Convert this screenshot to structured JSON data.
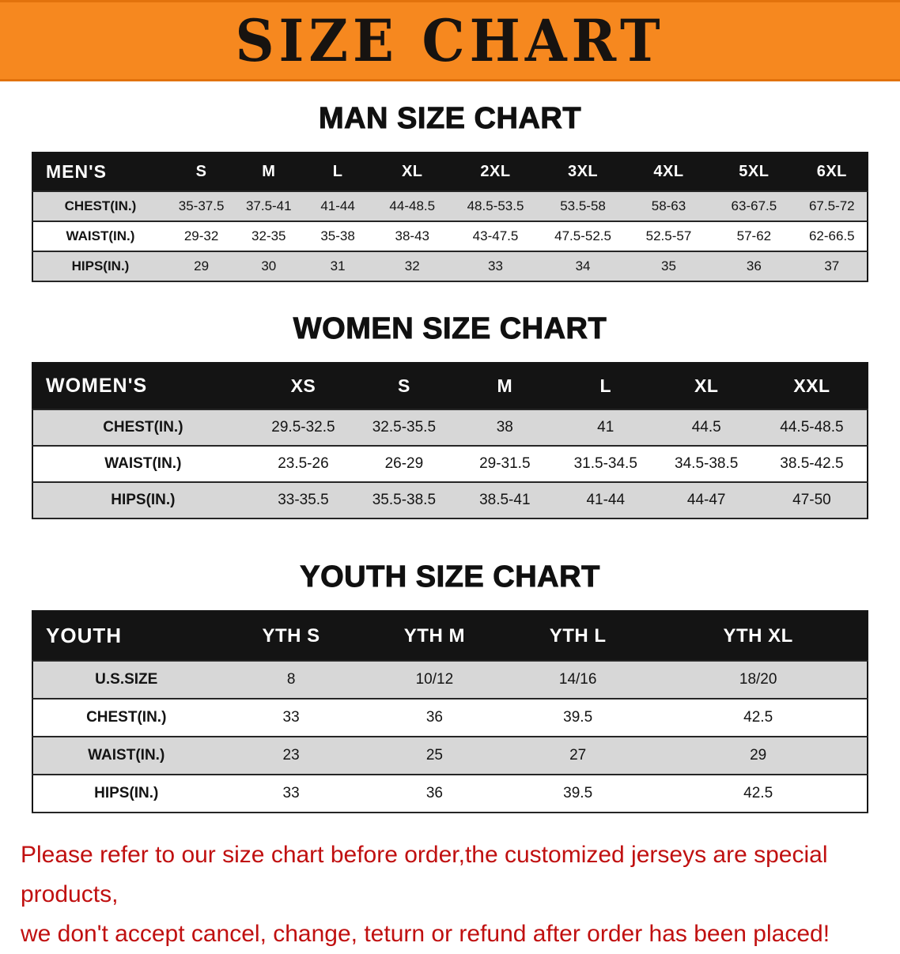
{
  "banner": {
    "title": "SIZE CHART",
    "bg_color": "#f6881f",
    "text_color": "#171310"
  },
  "men": {
    "heading": "MAN SIZE CHART",
    "table": {
      "header": [
        "MEN'S",
        "S",
        "M",
        "L",
        "XL",
        "2XL",
        "3XL",
        "4XL",
        "5XL",
        "6XL"
      ],
      "rows": [
        [
          "CHEST(IN.)",
          "35-37.5",
          "37.5-41",
          "41-44",
          "44-48.5",
          "48.5-53.5",
          "53.5-58",
          "58-63",
          "63-67.5",
          "67.5-72"
        ],
        [
          "WAIST(IN.)",
          "29-32",
          "32-35",
          "35-38",
          "38-43",
          "43-47.5",
          "47.5-52.5",
          "52.5-57",
          "57-62",
          "62-66.5"
        ],
        [
          "HIPS(IN.)",
          "29",
          "30",
          "31",
          "32",
          "33",
          "34",
          "35",
          "36",
          "37"
        ]
      ]
    }
  },
  "women": {
    "heading": "WOMEN SIZE CHART",
    "table": {
      "header": [
        "WOMEN'S",
        "XS",
        "S",
        "M",
        "L",
        "XL",
        "XXL"
      ],
      "rows": [
        [
          "CHEST(IN.)",
          "29.5-32.5",
          "32.5-35.5",
          "38",
          "41",
          "44.5",
          "44.5-48.5"
        ],
        [
          "WAIST(IN.)",
          "23.5-26",
          "26-29",
          "29-31.5",
          "31.5-34.5",
          "34.5-38.5",
          "38.5-42.5"
        ],
        [
          "HIPS(IN.)",
          "33-35.5",
          "35.5-38.5",
          "38.5-41",
          "41-44",
          "44-47",
          "47-50"
        ]
      ]
    }
  },
  "youth": {
    "heading": "YOUTH SIZE CHART",
    "table": {
      "header": [
        "YOUTH",
        "YTH S",
        "YTH M",
        "YTH L",
        "YTH XL"
      ],
      "rows": [
        [
          "U.S.SIZE",
          "8",
          "10/12",
          "14/16",
          "18/20"
        ],
        [
          "CHEST(IN.)",
          "33",
          "36",
          "39.5",
          "42.5"
        ],
        [
          "WAIST(IN.)",
          "23",
          "25",
          "27",
          "29"
        ],
        [
          "HIPS(IN.)",
          "33",
          "36",
          "39.5",
          "42.5"
        ]
      ]
    }
  },
  "disclaimer": {
    "line1": "Please refer to our size chart before order,the customized jerseys are special products,",
    "line2": "we don't accept cancel, change, teturn or refund after order has been placed!",
    "color": "#c01010"
  }
}
